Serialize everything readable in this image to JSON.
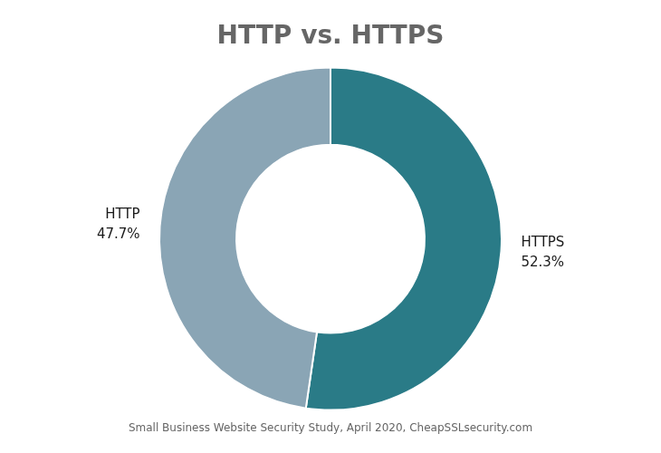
{
  "chart_data": {
    "type": "doughnut",
    "title": "HTTP vs. HTTPS",
    "categories": [
      "HTTPS",
      "HTTP"
    ],
    "values": [
      52.3,
      47.7
    ],
    "value_labels": [
      "52.3%",
      "47.7%"
    ],
    "colors": [
      "#2a7b87",
      "#8aa5b5"
    ],
    "data_labels": true,
    "legend": false,
    "footnote": "Small Business Website Security Study, April 2020, CheapSSLsecurity.com"
  }
}
